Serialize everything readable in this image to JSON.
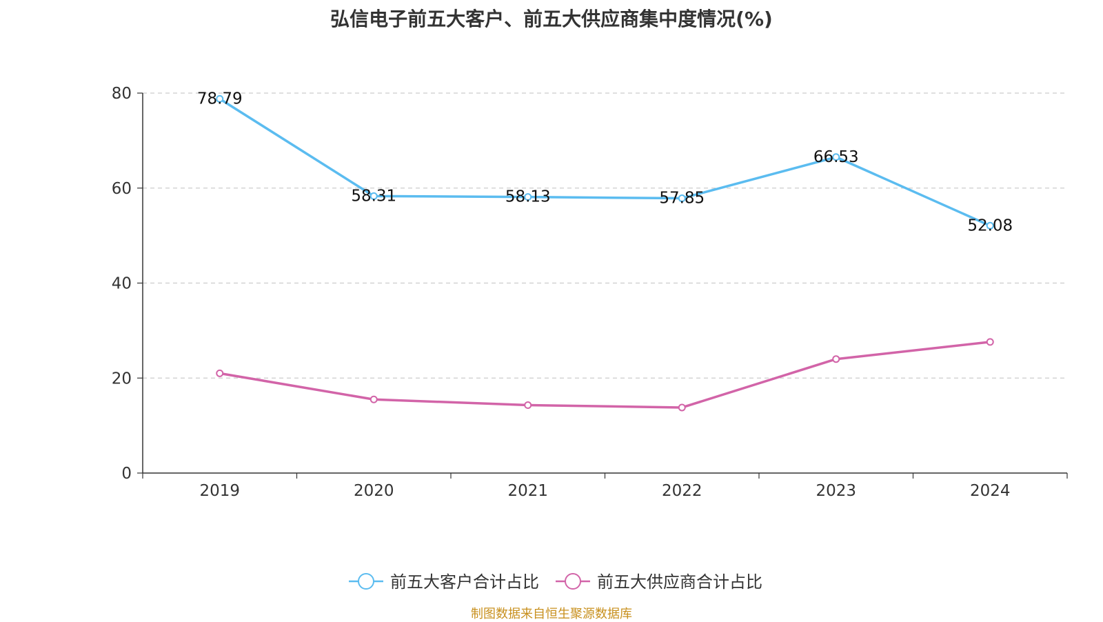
{
  "chart_data": {
    "type": "line",
    "title": "弘信电子前五大客户、前五大供应商集中度情况(%)",
    "xlabel": "",
    "ylabel": "",
    "categories": [
      "2019",
      "2020",
      "2021",
      "2022",
      "2023",
      "2024"
    ],
    "ylim": [
      0,
      80
    ],
    "yticks": [
      0,
      20,
      40,
      60,
      80
    ],
    "grid": true,
    "legend_position": "bottom",
    "series": [
      {
        "name": "前五大客户合计占比",
        "color": "#5bbcf0",
        "values": [
          78.79,
          58.31,
          58.13,
          57.85,
          66.53,
          52.08
        ],
        "labels": [
          "78.79",
          "58.31",
          "58.13",
          "57.85",
          "66.53",
          "52.08"
        ]
      },
      {
        "name": "前五大供应商合计占比",
        "color": "#d264a8",
        "values": [
          21.0,
          15.5,
          14.3,
          13.8,
          24.0,
          27.6
        ]
      }
    ]
  },
  "footer": {
    "source": "制图数据来自恒生聚源数据库"
  }
}
